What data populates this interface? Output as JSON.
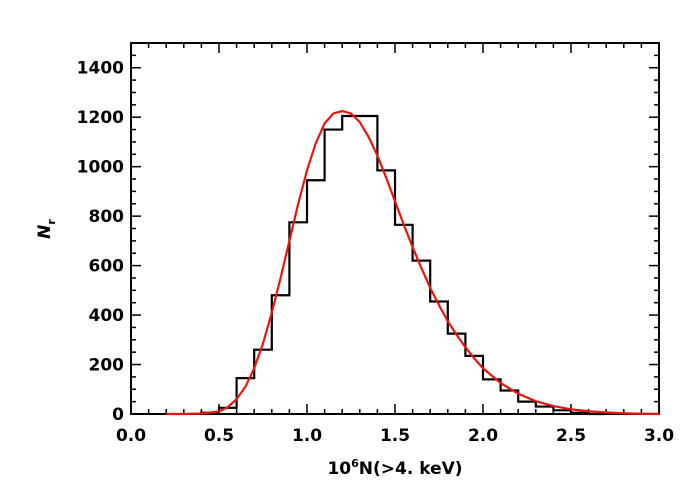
{
  "chart_data": {
    "type": "bar",
    "title": "",
    "xlabel": {
      "base": "10",
      "exponent": "6",
      "rest": "N(>4. keV)"
    },
    "ylabel": {
      "main": "N",
      "subscript": "r"
    },
    "xlim": [
      0.0,
      3.0
    ],
    "ylim": [
      0,
      1500
    ],
    "x_ticks": [
      0.0,
      0.5,
      1.0,
      1.5,
      2.0,
      2.5,
      3.0
    ],
    "x_tick_labels": [
      "0.0",
      "0.5",
      "1.0",
      "1.5",
      "2.0",
      "2.5",
      "3.0"
    ],
    "y_ticks": [
      0,
      200,
      400,
      600,
      800,
      1000,
      1200,
      1400
    ],
    "y_tick_labels": [
      "0",
      "200",
      "400",
      "600",
      "800",
      "1000",
      "1200",
      "1400"
    ],
    "grid": false,
    "series": [
      {
        "kind": "histogram-step",
        "color": "#000000",
        "bin_edges": [
          0.4,
          0.5,
          0.6,
          0.7,
          0.8,
          0.9,
          1.0,
          1.1,
          1.2,
          1.3,
          1.4,
          1.5,
          1.6,
          1.7,
          1.8,
          1.9,
          2.0,
          2.1,
          2.2,
          2.3,
          2.4,
          2.5,
          2.6,
          2.7
        ],
        "values": [
          5,
          25,
          145,
          260,
          480,
          775,
          945,
          1150,
          1205,
          1205,
          985,
          765,
          620,
          455,
          325,
          235,
          140,
          95,
          50,
          30,
          15,
          5,
          0
        ]
      },
      {
        "kind": "fit-curve",
        "color": "#e8160c",
        "x": [
          0.2,
          0.3,
          0.4,
          0.5,
          0.55,
          0.6,
          0.65,
          0.7,
          0.75,
          0.8,
          0.85,
          0.9,
          0.95,
          1.0,
          1.05,
          1.1,
          1.15,
          1.2,
          1.25,
          1.3,
          1.35,
          1.4,
          1.45,
          1.5,
          1.55,
          1.6,
          1.65,
          1.7,
          1.75,
          1.8,
          1.85,
          1.9,
          1.95,
          2.0,
          2.1,
          2.2,
          2.3,
          2.4,
          2.5,
          2.6,
          2.7,
          2.8,
          2.9,
          3.0
        ],
        "y": [
          0,
          0,
          2,
          10,
          28,
          60,
          110,
          185,
          285,
          410,
          550,
          700,
          850,
          985,
          1095,
          1175,
          1215,
          1225,
          1215,
          1180,
          1120,
          1045,
          955,
          860,
          765,
          675,
          590,
          510,
          440,
          375,
          320,
          270,
          225,
          185,
          125,
          82,
          52,
          32,
          19,
          11,
          6,
          3,
          1,
          0
        ]
      }
    ]
  }
}
